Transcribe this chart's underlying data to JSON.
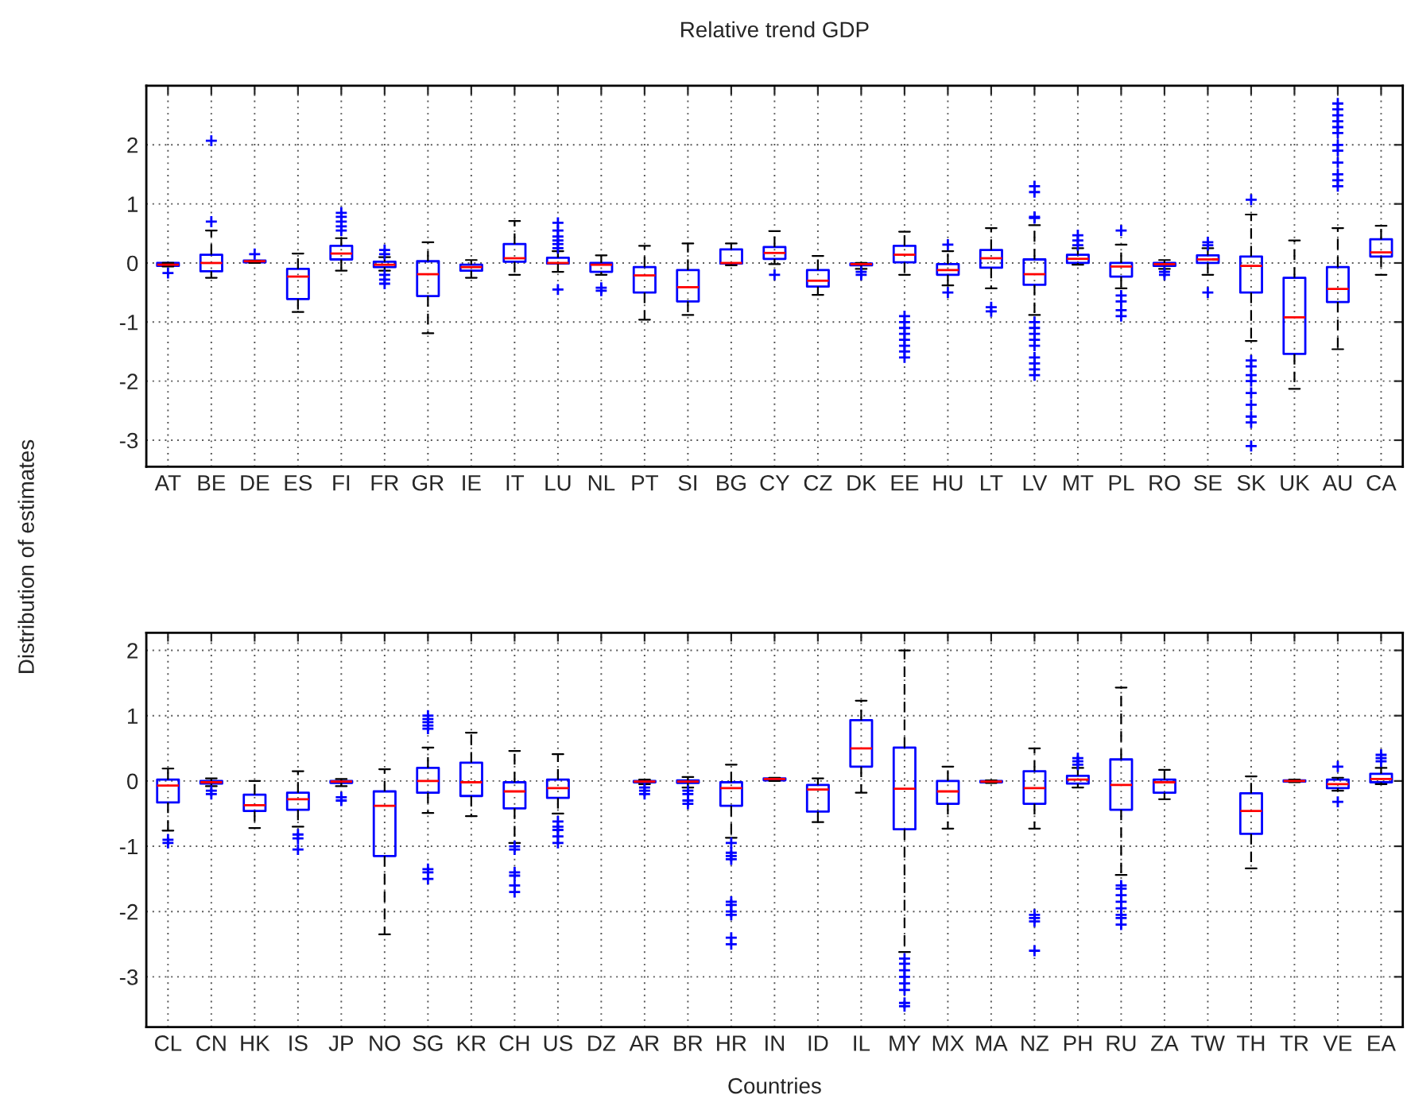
{
  "chart_data": [
    {
      "type": "box",
      "title": "Relative trend GDP",
      "ylabel": "Distribution of estimates",
      "color": "#0000ff",
      "marker": "cross",
      "grid": true,
      "ylim": [
        -3.45,
        3
      ],
      "yticks": [
        -3,
        -2,
        -1,
        0,
        1,
        2
      ],
      "categories": [
        "AT",
        "BE",
        "DE",
        "ES",
        "FI",
        "FR",
        "GR",
        "IE",
        "IT",
        "LU",
        "NL",
        "PT",
        "SI",
        "BG",
        "CY",
        "CZ",
        "DK",
        "EE",
        "HU",
        "LT",
        "LV",
        "MT",
        "PL",
        "RO",
        "SE",
        "SK",
        "UK",
        "AU",
        "CA"
      ],
      "boxes": [
        {
          "low": -0.06,
          "q1": -0.05,
          "median": -0.03,
          "q3": 0,
          "high": 0,
          "outliers": [
            -0.17
          ]
        },
        {
          "low": -0.25,
          "q1": -0.14,
          "median": 0,
          "q3": 0.14,
          "high": 0.55,
          "outliers": [
            0.7,
            2.07
          ]
        },
        {
          "low": 0,
          "q1": 0.01,
          "median": 0.03,
          "q3": 0.04,
          "high": 0.04,
          "outliers": [
            0.15
          ]
        },
        {
          "low": -0.83,
          "q1": -0.61,
          "median": -0.23,
          "q3": -0.1,
          "high": 0.16
        },
        {
          "low": -0.13,
          "q1": 0.06,
          "median": 0.16,
          "q3": 0.29,
          "high": 0.42,
          "outliers": [
            0.55,
            0.62,
            0.7,
            0.78,
            0.85
          ]
        },
        {
          "low": -0.13,
          "q1": -0.07,
          "median": -0.03,
          "q3": 0.02,
          "high": 0.1,
          "outliers": [
            0.15,
            0.22,
            -0.2,
            -0.28,
            -0.35
          ]
        },
        {
          "low": -1.19,
          "q1": -0.56,
          "median": -0.19,
          "q3": 0.03,
          "high": 0.35
        },
        {
          "low": -0.25,
          "q1": -0.13,
          "median": -0.07,
          "q3": -0.03,
          "high": 0.05
        },
        {
          "low": -0.2,
          "q1": 0.02,
          "median": 0.08,
          "q3": 0.32,
          "high": 0.71
        },
        {
          "low": -0.15,
          "q1": -0.01,
          "median": 0,
          "q3": 0.09,
          "high": 0.2,
          "outliers": [
            0.25,
            0.32,
            0.38,
            0.45,
            0.55,
            0.68,
            -0.45
          ]
        },
        {
          "low": -0.2,
          "q1": -0.15,
          "median": -0.03,
          "q3": 0,
          "high": 0.13,
          "outliers": [
            -0.42,
            -0.47
          ]
        },
        {
          "low": -0.96,
          "q1": -0.5,
          "median": -0.21,
          "q3": -0.07,
          "high": 0.29
        },
        {
          "low": -0.88,
          "q1": -0.65,
          "median": -0.41,
          "q3": -0.12,
          "high": 0.33
        },
        {
          "low": -0.04,
          "q1": -0.01,
          "median": 0,
          "q3": 0.23,
          "high": 0.33
        },
        {
          "low": -0.02,
          "q1": 0.07,
          "median": 0.17,
          "q3": 0.27,
          "high": 0.54,
          "outliers": [
            -0.2
          ]
        },
        {
          "low": -0.54,
          "q1": -0.4,
          "median": -0.3,
          "q3": -0.12,
          "high": 0.12
        },
        {
          "low": -0.1,
          "q1": -0.04,
          "median": -0.02,
          "q3": -0.01,
          "high": 0,
          "outliers": [
            -0.15,
            -0.2
          ]
        },
        {
          "low": -0.2,
          "q1": 0.01,
          "median": 0.14,
          "q3": 0.29,
          "high": 0.53,
          "outliers": [
            -0.9,
            -1.0,
            -1.1,
            -1.2,
            -1.3,
            -1.4,
            -1.5,
            -1.6
          ]
        },
        {
          "low": -0.38,
          "q1": -0.2,
          "median": -0.12,
          "q3": -0.02,
          "high": 0.2,
          "outliers": [
            0.31,
            -0.5
          ]
        },
        {
          "low": -0.43,
          "q1": -0.08,
          "median": 0.08,
          "q3": 0.22,
          "high": 0.59,
          "outliers": [
            -0.75,
            -0.82
          ]
        },
        {
          "low": -0.88,
          "q1": -0.37,
          "median": -0.19,
          "q3": 0.06,
          "high": 0.64,
          "outliers": [
            0.76,
            0.78,
            1.2,
            1.3,
            -1.0,
            -1.1,
            -1.2,
            -1.3,
            -1.4,
            -1.6,
            -1.7,
            -1.8,
            -1.9
          ]
        },
        {
          "low": -0.03,
          "q1": 0,
          "median": 0.07,
          "q3": 0.14,
          "high": 0.25,
          "outliers": [
            0.3,
            0.38,
            0.47
          ]
        },
        {
          "low": -0.43,
          "q1": -0.23,
          "median": -0.06,
          "q3": 0,
          "high": 0.31,
          "outliers": [
            0.55,
            -0.55,
            -0.65,
            -0.8,
            -0.9
          ]
        },
        {
          "low": -0.1,
          "q1": -0.05,
          "median": -0.02,
          "q3": 0,
          "high": 0.05,
          "outliers": [
            -0.15,
            -0.2
          ]
        },
        {
          "low": -0.2,
          "q1": 0,
          "median": 0.06,
          "q3": 0.13,
          "high": 0.25,
          "outliers": [
            0.3,
            0.35,
            -0.5
          ]
        },
        {
          "low": -1.32,
          "q1": -0.5,
          "median": -0.05,
          "q3": 0.11,
          "high": 0.82,
          "outliers": [
            1.07,
            -1.65,
            -1.75,
            -1.9,
            -2.0,
            -2.2,
            -2.4,
            -2.6,
            -2.7,
            -3.1
          ]
        },
        {
          "low": -2.13,
          "q1": -1.54,
          "median": -0.92,
          "q3": -0.25,
          "high": 0.38
        },
        {
          "low": -1.46,
          "q1": -0.66,
          "median": -0.44,
          "q3": -0.07,
          "high": 0.59,
          "outliers": [
            1.3,
            1.4,
            1.5,
            1.7,
            1.9,
            2.0,
            2.2,
            2.3,
            2.4,
            2.5,
            2.6,
            2.7
          ]
        },
        {
          "low": -0.2,
          "q1": 0.11,
          "median": 0.18,
          "q3": 0.4,
          "high": 0.63
        }
      ]
    },
    {
      "type": "box",
      "xlabel": "Countries",
      "color": "#0000ff",
      "marker": "cross",
      "grid": true,
      "ylim": [
        -3.77,
        2.27
      ],
      "yticks": [
        -3,
        -2,
        -1,
        0,
        1,
        2
      ],
      "categories": [
        "CL",
        "CN",
        "HK",
        "IS",
        "JP",
        "NO",
        "SG",
        "KR",
        "CH",
        "US",
        "DZ",
        "AR",
        "BR",
        "HR",
        "IN",
        "ID",
        "IL",
        "MY",
        "MX",
        "MA",
        "NZ",
        "PH",
        "RU",
        "ZA",
        "TW",
        "TH",
        "TR",
        "VE",
        "EA"
      ],
      "boxes": [
        {
          "low": -0.76,
          "q1": -0.33,
          "median": -0.07,
          "q3": 0.02,
          "high": 0.19,
          "outliers": [
            -0.9,
            -0.95
          ]
        },
        {
          "low": -0.08,
          "q1": -0.04,
          "median": -0.02,
          "q3": 0,
          "high": 0.04,
          "outliers": [
            -0.15,
            -0.2
          ]
        },
        {
          "low": -0.72,
          "q1": -0.46,
          "median": -0.37,
          "q3": -0.21,
          "high": 0
        },
        {
          "low": -0.7,
          "q1": -0.44,
          "median": -0.28,
          "q3": -0.18,
          "high": 0.15,
          "outliers": [
            -0.82,
            -0.88,
            -1.05
          ]
        },
        {
          "low": -0.08,
          "q1": -0.03,
          "median": -0.01,
          "q3": 0,
          "high": 0.03,
          "outliers": [
            -0.25,
            -0.3
          ]
        },
        {
          "low": -2.35,
          "q1": -1.15,
          "median": -0.38,
          "q3": -0.16,
          "high": 0.18
        },
        {
          "low": -0.49,
          "q1": -0.18,
          "median": 0,
          "q3": 0.2,
          "high": 0.51,
          "outliers": [
            0.8,
            0.85,
            0.9,
            0.95,
            1.0,
            -1.35,
            -1.4,
            -1.5
          ]
        },
        {
          "low": -0.54,
          "q1": -0.23,
          "median": -0.02,
          "q3": 0.28,
          "high": 0.74
        },
        {
          "low": -0.95,
          "q1": -0.42,
          "median": -0.16,
          "q3": -0.02,
          "high": 0.46,
          "outliers": [
            -1.0,
            -1.05,
            -1.4,
            -1.45,
            -1.6,
            -1.7
          ]
        },
        {
          "low": -0.5,
          "q1": -0.26,
          "median": -0.11,
          "q3": 0.02,
          "high": 0.41,
          "outliers": [
            -0.62,
            -0.7,
            -0.75,
            -0.85,
            -0.95
          ]
        },
        null,
        {
          "low": -0.05,
          "q1": -0.02,
          "median": -0.01,
          "q3": 0,
          "high": 0.02,
          "outliers": [
            -0.1,
            -0.15,
            -0.2
          ]
        },
        {
          "low": -0.1,
          "q1": -0.03,
          "median": -0.01,
          "q3": 0.01,
          "high": 0.06,
          "outliers": [
            -0.15,
            -0.2,
            -0.3,
            -0.35
          ]
        },
        {
          "low": -0.87,
          "q1": -0.38,
          "median": -0.11,
          "q3": -0.02,
          "high": 0.25,
          "outliers": [
            -0.95,
            -1.1,
            -1.15,
            -1.2,
            -1.85,
            -1.9,
            -2.0,
            -2.05,
            -2.4,
            -2.5
          ]
        },
        {
          "low": 0,
          "q1": 0.01,
          "median": 0.03,
          "q3": 0.04,
          "high": 0.05
        },
        {
          "low": -0.63,
          "q1": -0.47,
          "median": -0.13,
          "q3": -0.06,
          "high": 0.04
        },
        {
          "low": -0.18,
          "q1": 0.22,
          "median": 0.5,
          "q3": 0.93,
          "high": 1.23
        },
        {
          "low": -2.62,
          "q1": -0.74,
          "median": -0.12,
          "q3": 0.51,
          "high": 2.0,
          "outliers": [
            -2.72,
            -2.8,
            -2.9,
            -3.0,
            -3.1,
            -3.2,
            -3.4,
            -3.45
          ]
        },
        {
          "low": -0.73,
          "q1": -0.35,
          "median": -0.16,
          "q3": 0,
          "high": 0.22
        },
        {
          "low": -0.03,
          "q1": -0.02,
          "median": -0.01,
          "q3": 0,
          "high": 0.01
        },
        {
          "low": -0.73,
          "q1": -0.35,
          "median": -0.11,
          "q3": 0.15,
          "high": 0.5,
          "outliers": [
            -2.05,
            -2.1,
            -2.15,
            -2.6
          ]
        },
        {
          "low": -0.1,
          "q1": -0.04,
          "median": 0.02,
          "q3": 0.08,
          "high": 0.2,
          "outliers": [
            0.25,
            0.3,
            0.35
          ]
        },
        {
          "low": -1.44,
          "q1": -0.44,
          "median": -0.06,
          "q3": 0.33,
          "high": 1.43,
          "outliers": [
            -1.6,
            -1.65,
            -1.75,
            -1.85,
            -1.95,
            -2.05,
            -2.1,
            -2.2
          ]
        },
        {
          "low": -0.28,
          "q1": -0.18,
          "median": -0.02,
          "q3": 0.02,
          "high": 0.17
        },
        null,
        {
          "low": -1.34,
          "q1": -0.81,
          "median": -0.46,
          "q3": -0.19,
          "high": 0.07
        },
        {
          "low": -0.02,
          "q1": -0.01,
          "median": 0,
          "q3": 0.01,
          "high": 0.02
        },
        {
          "low": -0.15,
          "q1": -0.11,
          "median": -0.05,
          "q3": 0.02,
          "high": 0.05,
          "outliers": [
            0.22,
            -0.32
          ]
        },
        {
          "low": -0.05,
          "q1": -0.02,
          "median": 0.03,
          "q3": 0.11,
          "high": 0.2,
          "outliers": [
            0.3,
            0.35,
            0.4
          ]
        }
      ]
    }
  ]
}
